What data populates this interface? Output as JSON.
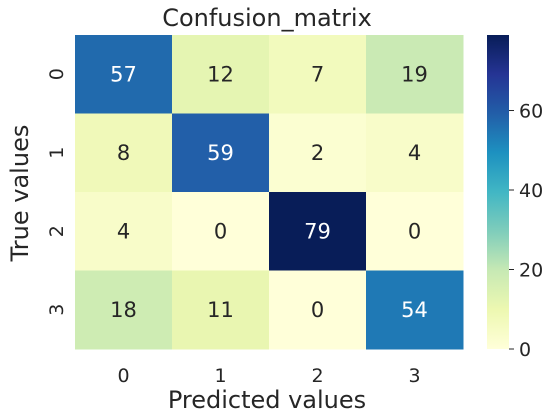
{
  "chart_data": {
    "type": "heatmap",
    "title": "Confusion_matrix",
    "xlabel": "Predicted values",
    "ylabel": "True values",
    "x_categories": [
      "0",
      "1",
      "2",
      "3"
    ],
    "y_categories": [
      "0",
      "1",
      "2",
      "3"
    ],
    "matrix": [
      [
        57,
        12,
        7,
        19
      ],
      [
        8,
        59,
        2,
        4
      ],
      [
        4,
        0,
        79,
        0
      ],
      [
        18,
        11,
        0,
        54
      ]
    ],
    "colormap": "YlGnBu",
    "colorbar": {
      "range": [
        0,
        79
      ],
      "ticks": [
        "0",
        "20",
        "40",
        "60"
      ]
    },
    "colors": {
      "low": "#ffffd9",
      "mid": "#41b6c4",
      "high": "#081d58"
    }
  }
}
